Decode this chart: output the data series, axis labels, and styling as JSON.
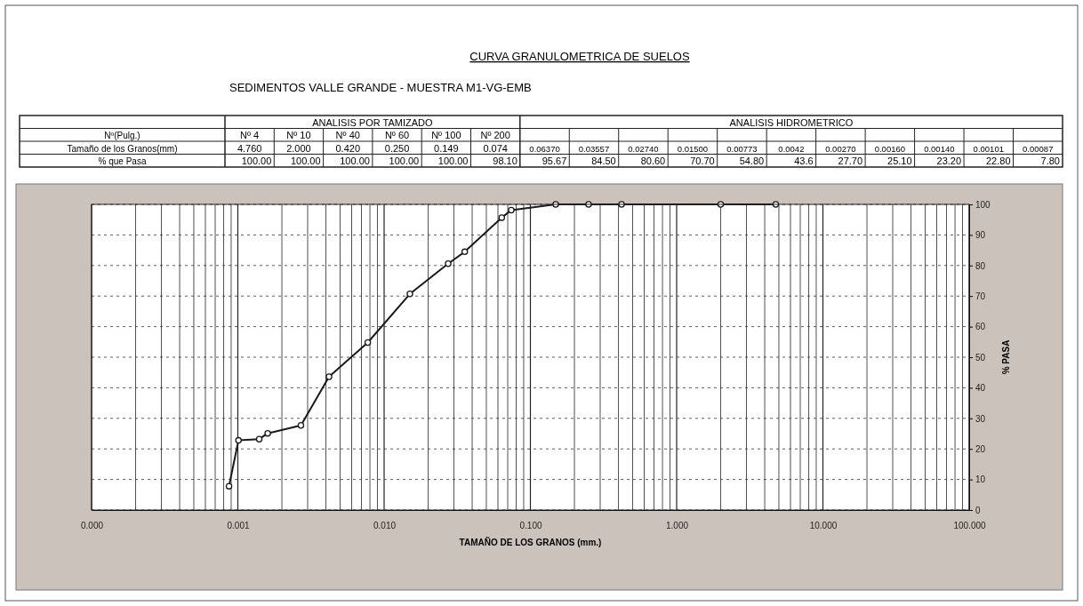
{
  "chart_data": {
    "type": "line",
    "title": "CURVA GRANULOMETRICA DE SUELOS",
    "subtitle": "SEDIMENTOS VALLE GRANDE - MUESTRA M1-VG-EMB",
    "xlabel": "TAMAÑO DE LOS GRANOS (mm.)",
    "ylabel": "% PASA",
    "log": "x",
    "xlim": [
      0.0001,
      100
    ],
    "ylim": [
      0,
      100
    ],
    "xticks": [
      {
        "value": 0.0001,
        "label": "0.000"
      },
      {
        "value": 0.0002,
        "label": null
      },
      {
        "value": 0.0003,
        "label": null
      },
      {
        "value": 0.0004,
        "label": null
      },
      {
        "value": 0.0005,
        "label": null
      },
      {
        "value": 0.0006,
        "label": null
      },
      {
        "value": 0.0007,
        "label": null
      },
      {
        "value": 0.0008,
        "label": null
      },
      {
        "value": 0.0009,
        "label": null
      },
      {
        "value": 0.001,
        "label": "0.001"
      },
      {
        "value": 0.002,
        "label": null
      },
      {
        "value": 0.003,
        "label": null
      },
      {
        "value": 0.004,
        "label": null
      },
      {
        "value": 0.005,
        "label": null
      },
      {
        "value": 0.006,
        "label": null
      },
      {
        "value": 0.007,
        "label": null
      },
      {
        "value": 0.008,
        "label": null
      },
      {
        "value": 0.009,
        "label": null
      },
      {
        "value": 0.01,
        "label": "0.010"
      },
      {
        "value": 0.02,
        "label": null
      },
      {
        "value": 0.03,
        "label": null
      },
      {
        "value": 0.04,
        "label": null
      },
      {
        "value": 0.05,
        "label": null
      },
      {
        "value": 0.06,
        "label": null
      },
      {
        "value": 0.07,
        "label": null
      },
      {
        "value": 0.08,
        "label": null
      },
      {
        "value": 0.09,
        "label": null
      },
      {
        "value": 0.1,
        "label": "0.100"
      },
      {
        "value": 0.2,
        "label": null
      },
      {
        "value": 0.3,
        "label": null
      },
      {
        "value": 0.4,
        "label": null
      },
      {
        "value": 0.5,
        "label": null
      },
      {
        "value": 0.6,
        "label": null
      },
      {
        "value": 0.7,
        "label": null
      },
      {
        "value": 0.8,
        "label": null
      },
      {
        "value": 0.9,
        "label": null
      },
      {
        "value": 1,
        "label": "1.000"
      },
      {
        "value": 2,
        "label": null
      },
      {
        "value": 3,
        "label": null
      },
      {
        "value": 4,
        "label": null
      },
      {
        "value": 5,
        "label": null
      },
      {
        "value": 6,
        "label": null
      },
      {
        "value": 7,
        "label": null
      },
      {
        "value": 8,
        "label": null
      },
      {
        "value": 9,
        "label": null
      },
      {
        "value": 10,
        "label": "10.000"
      },
      {
        "value": 20,
        "label": null
      },
      {
        "value": 30,
        "label": null
      },
      {
        "value": 40,
        "label": null
      },
      {
        "value": 50,
        "label": null
      },
      {
        "value": 60,
        "label": null
      },
      {
        "value": 70,
        "label": null
      },
      {
        "value": 80,
        "label": null
      },
      {
        "value": 90,
        "label": null
      },
      {
        "value": 100,
        "label": "100.000"
      }
    ],
    "yticks": [
      0,
      10,
      20,
      30,
      40,
      50,
      60,
      70,
      80,
      90,
      100
    ],
    "grid": true,
    "marker": "circle",
    "line_style": "solid",
    "series": [
      {
        "color": "#1a1a1a",
        "x": [
          4.76,
          2.0,
          0.42,
          0.25,
          0.149,
          0.074,
          0.0637,
          0.03557,
          0.0274,
          0.015,
          0.00773,
          0.0042,
          0.0027,
          0.0016,
          0.0014,
          0.00101,
          0.00087
        ],
        "values": [
          100,
          100,
          100,
          100,
          100,
          98.1,
          95.67,
          84.5,
          80.6,
          70.7,
          54.8,
          43.6,
          27.7,
          25.1,
          23.2,
          22.8,
          7.8
        ]
      }
    ],
    "annotations": [
      "ANALISIS POR TAMIZADO",
      "ANALISIS HIDROMETRICO",
      "Nº(Pulg.)",
      "Tamaño de los Granos(mm)",
      "% que Pasa",
      "Nº 4",
      "Nº 10",
      "Nº 40",
      "Nº 60",
      "Nº 100",
      "Nº 200",
      "4.760",
      "2.000",
      "0.420",
      "0.250",
      "0.149",
      "0.074",
      "0.06370",
      "0.03557",
      "0.02740",
      "0.01500",
      "0.00773",
      "0.0042",
      "0.00270",
      "0.00160",
      "0.00140",
      "0.00101",
      "0.00087",
      "100.00",
      "100.00",
      "100.00",
      "100.00",
      "100.00",
      "98.10",
      "95.67",
      "84.50",
      "80.60",
      "70.70",
      "54.80",
      "43.6",
      "27.70",
      "25.10",
      "23.20",
      "22.80",
      "7.80"
    ]
  }
}
